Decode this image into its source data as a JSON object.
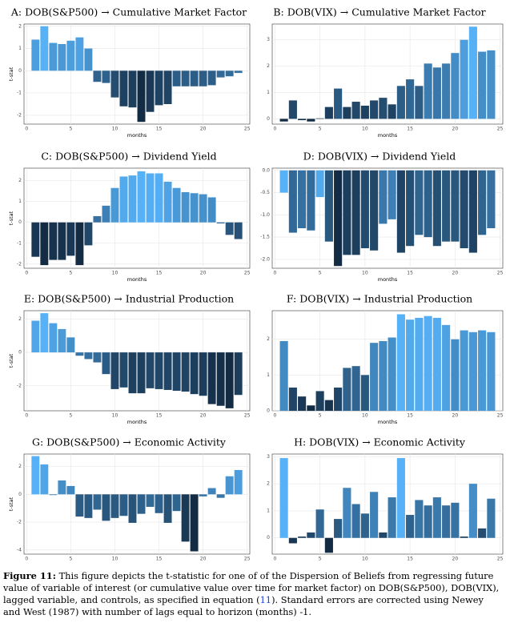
{
  "chart_data": [
    {
      "type": "bar",
      "title": "A: DOB(S&P500) → Cumulative Market Factor",
      "x_label": "months",
      "y_label": "t-stat",
      "x": [
        1,
        2,
        3,
        4,
        5,
        6,
        7,
        8,
        9,
        10,
        11,
        12,
        13,
        14,
        15,
        16,
        17,
        18,
        19,
        20,
        21,
        22,
        23,
        24
      ],
      "values": [
        1.4,
        2.0,
        1.25,
        1.2,
        1.35,
        1.5,
        1.0,
        -0.5,
        -0.55,
        -1.2,
        -1.6,
        -1.65,
        -2.3,
        -1.85,
        -1.55,
        -1.5,
        -0.7,
        -0.7,
        -0.7,
        -0.7,
        -0.65,
        -0.3,
        -0.25,
        -0.1
      ],
      "xlim": [
        -0.3,
        25.3
      ],
      "xticks": [
        0,
        5,
        10,
        15,
        20,
        25
      ],
      "ylim": [
        -2.4,
        2.1
      ],
      "yticks": [
        -2,
        -1,
        0,
        1,
        2
      ],
      "grid": true,
      "colors": [
        "#132b43",
        "#56b1f7"
      ]
    },
    {
      "type": "bar",
      "title": "B: DOB(VIX) → Cumulative Market Factor",
      "x_label": "months",
      "x": [
        1,
        2,
        3,
        4,
        5,
        6,
        7,
        8,
        9,
        10,
        11,
        12,
        13,
        14,
        15,
        16,
        17,
        18,
        19,
        20,
        21,
        22,
        23,
        24
      ],
      "values": [
        -0.1,
        0.7,
        -0.05,
        -0.1,
        0.02,
        0.45,
        1.15,
        0.45,
        0.65,
        0.5,
        0.7,
        0.8,
        0.55,
        1.25,
        1.5,
        1.25,
        2.1,
        1.95,
        2.1,
        2.5,
        3.0,
        3.5,
        2.55,
        2.6
      ],
      "xlim": [
        -0.3,
        25.3
      ],
      "xticks": [
        0,
        5,
        10,
        15,
        20,
        25
      ],
      "ylim": [
        -0.2,
        3.6
      ],
      "yticks": [
        0,
        1,
        2,
        3
      ],
      "grid": true,
      "colors": [
        "#132b43",
        "#56b1f7"
      ]
    },
    {
      "type": "bar",
      "title": "C: DOB(S&P500) → Dividend Yield",
      "x_label": "months",
      "y_label": "t-stat",
      "x": [
        1,
        2,
        3,
        4,
        5,
        6,
        7,
        8,
        9,
        10,
        11,
        12,
        13,
        14,
        15,
        16,
        17,
        18,
        19,
        20,
        21,
        22,
        23,
        24
      ],
      "values": [
        -1.65,
        -2.05,
        -1.8,
        -1.8,
        -1.6,
        -2.05,
        -1.1,
        0.3,
        0.8,
        1.65,
        2.2,
        2.25,
        2.45,
        2.35,
        2.35,
        1.95,
        1.65,
        1.45,
        1.4,
        1.35,
        1.2,
        -0.05,
        -0.6,
        -0.8
      ],
      "xlim": [
        -0.3,
        25.3
      ],
      "xticks": [
        0,
        5,
        10,
        15,
        20,
        25
      ],
      "ylim": [
        -2.2,
        2.6
      ],
      "yticks": [
        -2,
        -1,
        0,
        1,
        2
      ],
      "grid": true,
      "colors": [
        "#132b43",
        "#56b1f7"
      ]
    },
    {
      "type": "bar",
      "title": "D: DOB(VIX) → Dividend Yield",
      "x_label": "months",
      "x": [
        1,
        2,
        3,
        4,
        5,
        6,
        7,
        8,
        9,
        10,
        11,
        12,
        13,
        14,
        15,
        16,
        17,
        18,
        19,
        20,
        21,
        22,
        23,
        24
      ],
      "values": [
        -0.5,
        -1.4,
        -1.3,
        -1.35,
        -0.6,
        -1.6,
        -2.15,
        -1.9,
        -1.9,
        -1.75,
        -1.8,
        -1.2,
        -1.1,
        -1.85,
        -1.7,
        -1.45,
        -1.5,
        -1.7,
        -1.6,
        -1.6,
        -1.75,
        -1.85,
        -1.45,
        -1.3
      ],
      "xlim": [
        -0.3,
        25.3
      ],
      "xticks": [
        0,
        5,
        10,
        15,
        20,
        25
      ],
      "ylim": [
        -2.2,
        0.05
      ],
      "yticks": [
        {
          "value": 0,
          "label": "0.0"
        },
        -0.5,
        {
          "value": -1,
          "label": "-1.0"
        },
        -1.5,
        {
          "value": -2,
          "label": "-2.0"
        }
      ],
      "grid": true,
      "colors": [
        "#132b43",
        "#56b1f7"
      ]
    },
    {
      "type": "bar",
      "title": "E: DOB(S&P500) → Industrial Production",
      "x_label": "months",
      "y_label": "t-stat",
      "x": [
        1,
        2,
        3,
        4,
        5,
        6,
        7,
        8,
        9,
        10,
        11,
        12,
        13,
        14,
        15,
        16,
        17,
        18,
        19,
        20,
        21,
        22,
        23,
        24
      ],
      "values": [
        1.9,
        2.35,
        1.75,
        1.4,
        0.9,
        -0.2,
        -0.4,
        -0.6,
        -1.3,
        -2.2,
        -2.1,
        -2.45,
        -2.45,
        -2.15,
        -2.2,
        -2.25,
        -2.3,
        -2.35,
        -2.5,
        -2.6,
        -3.1,
        -3.2,
        -3.35,
        -2.55
      ],
      "xlim": [
        -0.3,
        25.3
      ],
      "xticks": [
        0,
        5,
        10,
        15,
        20,
        25
      ],
      "ylim": [
        -3.5,
        2.5
      ],
      "yticks": [
        -2,
        0,
        2
      ],
      "grid": true,
      "colors": [
        "#132b43",
        "#56b1f7"
      ]
    },
    {
      "type": "bar",
      "title": "F: DOB(VIX) → Industrial Production",
      "x_label": "months",
      "x": [
        1,
        2,
        3,
        4,
        5,
        6,
        7,
        8,
        9,
        10,
        11,
        12,
        13,
        14,
        15,
        16,
        17,
        18,
        19,
        20,
        21,
        22,
        23,
        24
      ],
      "values": [
        1.95,
        0.65,
        0.4,
        0.15,
        0.55,
        0.3,
        0.65,
        1.2,
        1.25,
        1.0,
        1.9,
        1.95,
        2.05,
        2.7,
        2.55,
        2.6,
        2.65,
        2.6,
        2.4,
        2.0,
        2.25,
        2.2,
        2.25,
        2.2
      ],
      "xlim": [
        -0.3,
        25.3
      ],
      "xticks": [
        0,
        5,
        10,
        15,
        20,
        25
      ],
      "ylim": [
        0,
        2.8
      ],
      "yticks": [
        0,
        1,
        2
      ],
      "grid": true,
      "colors": [
        "#132b43",
        "#56b1f7"
      ]
    },
    {
      "type": "bar",
      "title": "G: DOB(S&P500) → Economic Activity",
      "x_label": "months",
      "y_label": "t-stat",
      "x": [
        1,
        2,
        3,
        4,
        5,
        6,
        7,
        8,
        9,
        10,
        11,
        12,
        13,
        14,
        15,
        16,
        17,
        18,
        19,
        20,
        21,
        22,
        23,
        24
      ],
      "values": [
        2.75,
        2.15,
        -0.05,
        1.0,
        0.6,
        -1.6,
        -1.7,
        -1.1,
        -1.9,
        -1.7,
        -1.55,
        -2.05,
        -1.4,
        -0.9,
        -1.35,
        -2.05,
        -1.2,
        -3.4,
        -4.1,
        -0.15,
        0.45,
        -0.25,
        1.3,
        1.75
      ],
      "xlim": [
        -0.3,
        25.3
      ],
      "xticks": [
        0,
        5,
        10,
        15,
        20,
        25
      ],
      "ylim": [
        -4.3,
        2.9
      ],
      "yticks": [
        -4,
        -2,
        0,
        2
      ],
      "grid": true,
      "colors": [
        "#132b43",
        "#56b1f7"
      ]
    },
    {
      "type": "bar",
      "title": "H: DOB(VIX) → Economic Activity",
      "x_label": "months",
      "x": [
        1,
        2,
        3,
        4,
        5,
        6,
        7,
        8,
        9,
        10,
        11,
        12,
        13,
        14,
        15,
        16,
        17,
        18,
        19,
        20,
        21,
        22,
        23,
        24
      ],
      "values": [
        2.95,
        -0.2,
        0.05,
        0.2,
        1.05,
        -0.55,
        0.7,
        1.85,
        1.25,
        0.9,
        1.7,
        0.2,
        1.5,
        2.95,
        0.85,
        1.4,
        1.2,
        1.5,
        1.2,
        1.3,
        0.05,
        2.0,
        0.35,
        1.45
      ],
      "xlim": [
        -0.3,
        25.3
      ],
      "xticks": [
        0,
        5,
        10,
        15,
        20,
        25
      ],
      "ylim": [
        -0.6,
        3.1
      ],
      "yticks": [
        0,
        1,
        2,
        3
      ],
      "grid": true,
      "colors": [
        "#132b43",
        "#56b1f7"
      ]
    }
  ],
  "caption": {
    "label": "Figure 11:",
    "text_before": "This figure depicts the t-statistic for one of of the Dispersion of Beliefs from regressing future value of variable of interest (or cumulative value over time for market factor) on DOB(S&P500), DOB(VIX), lagged variable, and controls, as specified in equation (",
    "ref": "11",
    "text_after": "). Standard errors are corrected using Newey and West (1987) with number of lags equal to horizon (months) -1."
  }
}
